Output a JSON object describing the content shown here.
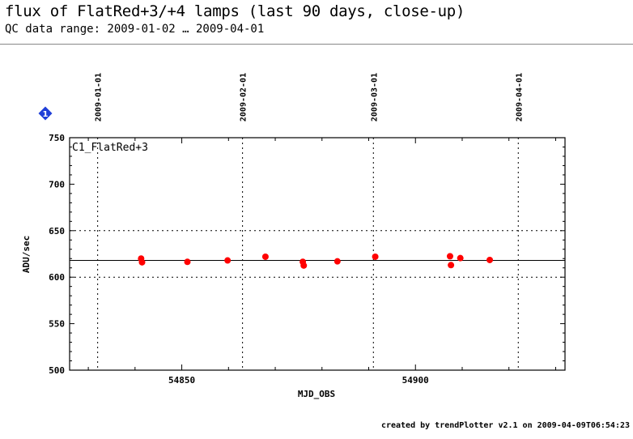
{
  "title": "flux of FlatRed+3/+4 lamps (last 90 days, close-up)",
  "subtitle": "QC data range: 2009-01-02 … 2009-04-01",
  "footer": "created by trendPlotter v2.1 on 2009-04-09T06:54:23",
  "marker_label": "1",
  "colors": {
    "points": "#ff0000",
    "marker": "#1f3fd8",
    "axis": "#000000"
  },
  "chart_data": {
    "type": "scatter",
    "panel_label": "C1_FlatRed+3",
    "xlabel": "MJD_OBS",
    "ylabel": "ADU/sec",
    "xlim": [
      54826,
      54932
    ],
    "ylim": [
      500,
      750
    ],
    "xticks": [
      54850,
      54900
    ],
    "yticks": [
      500,
      550,
      600,
      650,
      700,
      750
    ],
    "reference_line": 618,
    "dotted_hlines": [
      600,
      650
    ],
    "top_axis_dates": [
      {
        "label": "2009-01-01",
        "mjd": 54832
      },
      {
        "label": "2009-02-01",
        "mjd": 54863
      },
      {
        "label": "2009-03-01",
        "mjd": 54891
      },
      {
        "label": "2009-04-01",
        "mjd": 54922
      }
    ],
    "points": [
      {
        "x": 54841.3,
        "y": 620
      },
      {
        "x": 54841.5,
        "y": 616
      },
      {
        "x": 54851.2,
        "y": 616.5
      },
      {
        "x": 54859.8,
        "y": 618
      },
      {
        "x": 54867.9,
        "y": 622
      },
      {
        "x": 54875.9,
        "y": 616.5
      },
      {
        "x": 54876.1,
        "y": 612.5
      },
      {
        "x": 54883.3,
        "y": 617
      },
      {
        "x": 54891.4,
        "y": 622
      },
      {
        "x": 54907.4,
        "y": 622.5
      },
      {
        "x": 54907.6,
        "y": 613
      },
      {
        "x": 54909.6,
        "y": 620.5
      },
      {
        "x": 54915.9,
        "y": 618.5
      }
    ]
  }
}
